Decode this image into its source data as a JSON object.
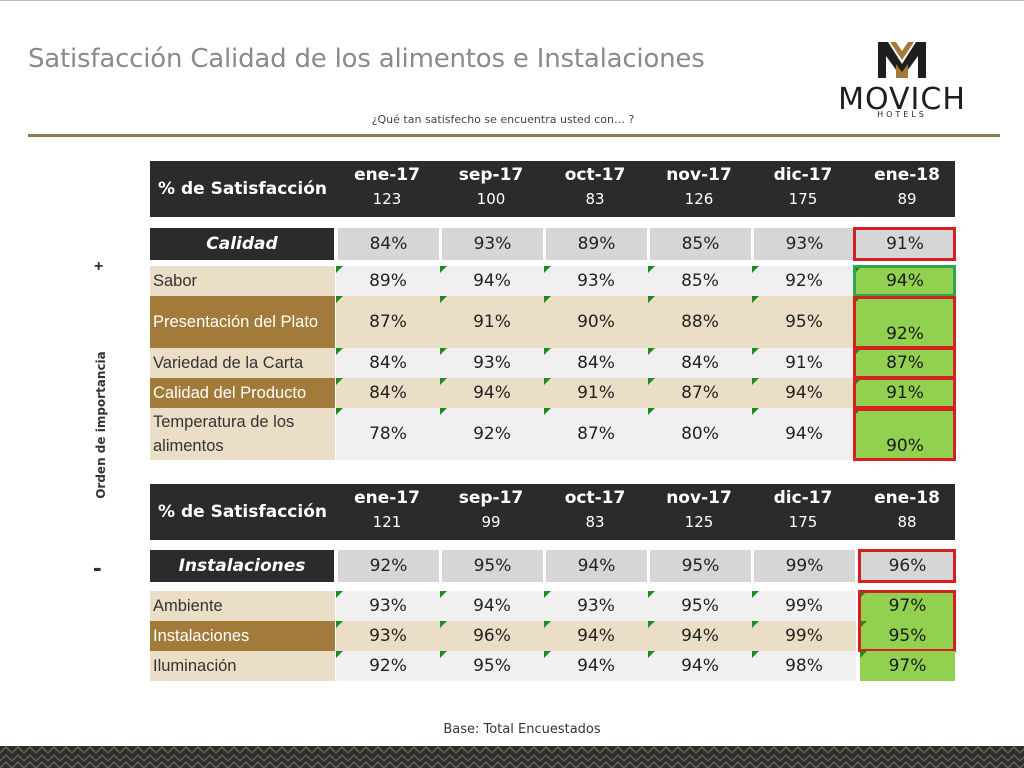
{
  "title": "Satisfacción Calidad de los alimentos e Instalaciones",
  "subtitle": "¿Qué tan satisfecho se encuentra usted con… ?",
  "logo": {
    "name": "MOVICH",
    "sub": "HOTELS"
  },
  "side_label": "Orden de importancia",
  "plus": "+",
  "minus": "-",
  "footer": "Base: Total Encuestados",
  "colors": {
    "dark": "#2b2b2b",
    "beige": "#eadfc6",
    "brown": "#a27b3a",
    "green": "#92d050",
    "red": "#d42020",
    "gold": "#8c7a52"
  },
  "tables": [
    {
      "header_label": "% de Satisfacción",
      "periods": [
        {
          "month": "ene-17",
          "n": "123"
        },
        {
          "month": "sep-17",
          "n": "100"
        },
        {
          "month": "oct-17",
          "n": "83"
        },
        {
          "month": "nov-17",
          "n": "126"
        },
        {
          "month": "dic-17",
          "n": "175"
        },
        {
          "month": "ene-18",
          "n": "89"
        }
      ],
      "category": {
        "label": "Calidad",
        "values": [
          "84%",
          "93%",
          "89%",
          "85%",
          "93%",
          "91%"
        ]
      },
      "rows": [
        {
          "label": "Sabor",
          "values": [
            "89%",
            "94%",
            "93%",
            "85%",
            "92%",
            "94%"
          ]
        },
        {
          "label": "Presentación del Plato",
          "values": [
            "87%",
            "91%",
            "90%",
            "88%",
            "95%",
            "92%"
          ]
        },
        {
          "label": "Variedad de la Carta",
          "values": [
            "84%",
            "93%",
            "84%",
            "84%",
            "91%",
            "87%"
          ]
        },
        {
          "label": "Calidad del Producto",
          "values": [
            "84%",
            "94%",
            "91%",
            "87%",
            "94%",
            "91%"
          ]
        },
        {
          "label": "Temperatura de los alimentos",
          "values": [
            "78%",
            "92%",
            "87%",
            "80%",
            "94%",
            "90%"
          ]
        }
      ]
    },
    {
      "header_label": "% de Satisfacción",
      "periods": [
        {
          "month": "ene-17",
          "n": "121"
        },
        {
          "month": "sep-17",
          "n": "99"
        },
        {
          "month": "oct-17",
          "n": "83"
        },
        {
          "month": "nov-17",
          "n": "125"
        },
        {
          "month": "dic-17",
          "n": "175"
        },
        {
          "month": "ene-18",
          "n": "88"
        }
      ],
      "category": {
        "label": "Instalaciones",
        "values": [
          "92%",
          "95%",
          "94%",
          "95%",
          "99%",
          "96%"
        ]
      },
      "rows": [
        {
          "label": "Ambiente",
          "values": [
            "93%",
            "94%",
            "93%",
            "95%",
            "99%",
            "97%"
          ]
        },
        {
          "label": "Instalaciones",
          "values": [
            "93%",
            "96%",
            "94%",
            "94%",
            "99%",
            "95%"
          ]
        },
        {
          "label": "Iluminación",
          "values": [
            "92%",
            "95%",
            "94%",
            "94%",
            "98%",
            "97%"
          ]
        }
      ]
    }
  ]
}
